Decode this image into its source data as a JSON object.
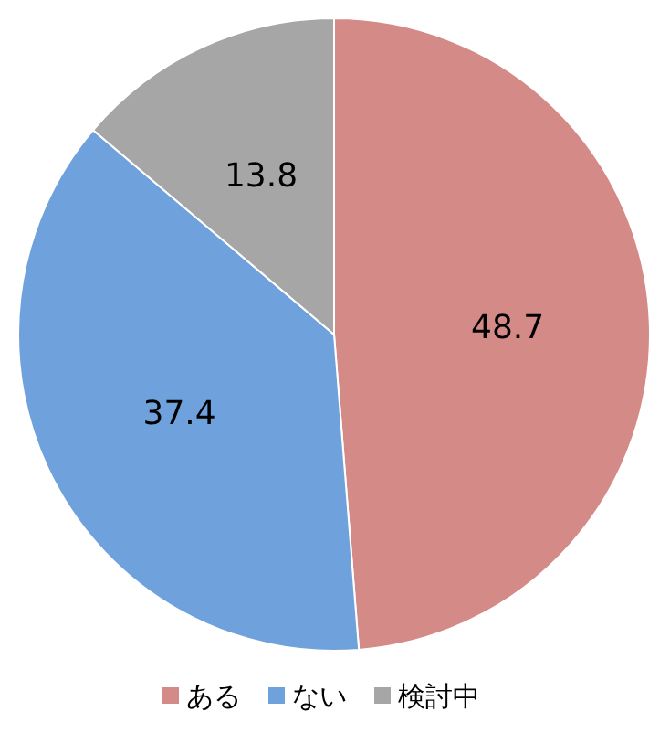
{
  "chart_data": {
    "type": "pie",
    "categories": [
      "ある",
      "ない",
      "検討中"
    ],
    "values": [
      48.7,
      37.4,
      13.8
    ],
    "colors": [
      "#d48a87",
      "#6fa2dc",
      "#a6a6a6"
    ],
    "data_labels": true,
    "legend": "bottom"
  }
}
